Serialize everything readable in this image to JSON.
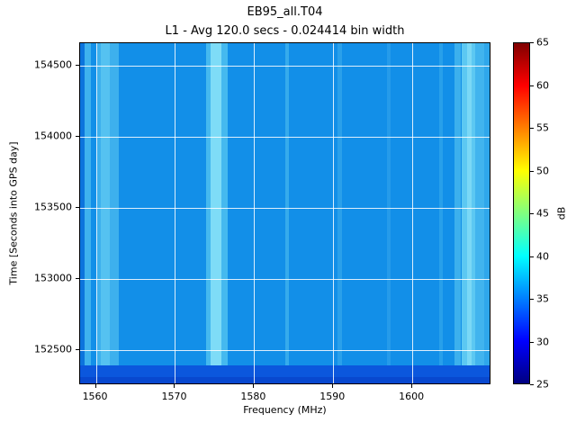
{
  "chart_data": {
    "type": "heatmap",
    "title": "EB95_all.T04",
    "axes_title": "L1 - Avg 120.0 secs - 0.024414 bin width",
    "xlabel": "Frequency (MHz)",
    "ylabel": "Time [Seconds into GPS day]",
    "colorbar_label": "dB",
    "colormap": "jet",
    "x_range": [
      1558,
      1610
    ],
    "y_range": [
      152250,
      154660
    ],
    "colorbar_range": [
      25,
      65
    ],
    "x_ticks": [
      1560,
      1570,
      1580,
      1590,
      1600
    ],
    "y_ticks": [
      152500,
      153000,
      153500,
      154000,
      154500
    ],
    "colorbar_ticks": [
      25,
      30,
      35,
      40,
      45,
      50,
      55,
      60,
      65
    ],
    "background_db": 35,
    "base_color": "#128fe8",
    "grid_color": "rgba(255,255,255,0.85)",
    "colorbar_stops": [
      [
        0,
        "#000080"
      ],
      [
        12.5,
        "#0000ff"
      ],
      [
        37.5,
        "#00ffff"
      ],
      [
        62.5,
        "#ffff00"
      ],
      [
        87.5,
        "#ff0000"
      ],
      [
        100,
        "#800000"
      ]
    ],
    "features": [
      {
        "name": "dark-edge-band",
        "x0": 1558.0,
        "x1": 1558.6,
        "color": "#0c74dd",
        "db": 33
      },
      {
        "name": "light-band",
        "x0": 1558.6,
        "x1": 1559.4,
        "color": "#3fb2ee",
        "db": 37
      },
      {
        "name": "light-band",
        "x0": 1560.2,
        "x1": 1562.9,
        "color": "#3db0ed",
        "db": 37
      },
      {
        "name": "light-band-core",
        "x0": 1560.6,
        "x1": 1561.8,
        "color": "#55c2f1",
        "db": 38
      },
      {
        "name": "light-band",
        "x0": 1573.9,
        "x1": 1576.7,
        "color": "#45b9ef",
        "db": 38
      },
      {
        "name": "light-band-core",
        "x0": 1574.5,
        "x1": 1575.9,
        "color": "#7edcf7",
        "db": 40
      },
      {
        "name": "faint-line",
        "x0": 1583.9,
        "x1": 1584.4,
        "color": "#36abec",
        "db": 36
      },
      {
        "name": "faint-line",
        "x0": 1590.5,
        "x1": 1591.1,
        "color": "#2aa0ea",
        "db": 36
      },
      {
        "name": "faint-line",
        "x0": 1596.8,
        "x1": 1597.3,
        "color": "#259bea",
        "db": 35.5
      },
      {
        "name": "faint-line",
        "x0": 1603.4,
        "x1": 1603.9,
        "color": "#28a0ea",
        "db": 36
      },
      {
        "name": "light-band",
        "x0": 1605.3,
        "x1": 1606.1,
        "color": "#3cb0ed",
        "db": 37
      },
      {
        "name": "light-band",
        "x0": 1606.3,
        "x1": 1608.0,
        "color": "#5cc8f2",
        "db": 39
      },
      {
        "name": "light-band-core",
        "x0": 1606.9,
        "x1": 1607.5,
        "color": "#7ad8f6",
        "db": 40
      },
      {
        "name": "light-band",
        "x0": 1608.0,
        "x1": 1609.1,
        "color": "#41b4ee",
        "db": 37
      },
      {
        "name": "light-band",
        "x0": 1609.1,
        "x1": 1610.0,
        "color": "#2fa7eb",
        "db": 36
      },
      {
        "name": "bottom-dark-band",
        "x0": 1558.0,
        "x1": 1610.0,
        "y0": 152250,
        "y1": 152390,
        "color": "#0b57dd",
        "db": 31
      },
      {
        "name": "bottom-dark-row",
        "x0": 1558.0,
        "x1": 1610.0,
        "y0": 152250,
        "y1": 152305,
        "color": "#0848cf",
        "db": 29
      }
    ]
  }
}
